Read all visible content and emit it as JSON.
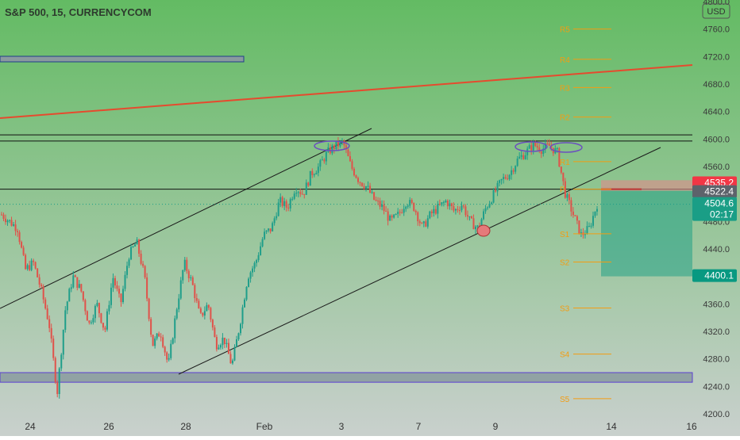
{
  "header": {
    "symbol_title": "S&P 500, 15, CURRENCYCOM",
    "currency_button": "USD"
  },
  "colors": {
    "bg_top": "#63bb63",
    "bg_bottom": "#c9d0cd",
    "candle_up": "#1f9e8a",
    "candle_down": "#e0524a",
    "trend_red": "#e64a2e",
    "pivot": "#f39c12",
    "zone_purple": "#5b3fd1",
    "zone_fill": "#8a9a9f",
    "ellipse": "#6b4fbf",
    "price_red": "#f23645",
    "price_green": "#1a9e86",
    "price_gray": "#5d636b",
    "target_green": "#089981"
  },
  "chart_data": {
    "type": "candlestick",
    "ylim": [
      4200,
      4800
    ],
    "y_ticks": [
      4200,
      4240,
      4280,
      4320,
      4360,
      4400,
      4440,
      4480,
      4520,
      4560,
      4600,
      4640,
      4680,
      4720,
      4760,
      4800
    ],
    "x_labels": [
      "24",
      "26",
      "28",
      "Feb",
      "3",
      "7",
      "9",
      "14",
      "16"
    ],
    "price_path": [
      [
        4490,
        4480
      ],
      [
        4470,
        4410
      ],
      [
        4420,
        4380
      ],
      [
        4330,
        4230
      ],
      [
        4350,
        4400
      ],
      [
        4380,
        4330
      ],
      [
        4360,
        4320
      ],
      [
        4400,
        4360
      ],
      [
        4430,
        4450
      ],
      [
        4400,
        4300
      ],
      [
        4320,
        4270
      ],
      [
        4350,
        4420
      ],
      [
        4390,
        4340
      ],
      [
        4360,
        4300
      ],
      [
        4310,
        4270
      ],
      [
        4330,
        4400
      ],
      [
        4420,
        4460
      ],
      [
        4470,
        4510
      ],
      [
        4500,
        4530
      ],
      [
        4520,
        4550
      ],
      [
        4560,
        4580
      ],
      [
        4590,
        4595
      ],
      [
        4560,
        4540
      ],
      [
        4530,
        4510
      ],
      [
        4500,
        4480
      ],
      [
        4490,
        4510
      ],
      [
        4500,
        4470
      ],
      [
        4490,
        4500
      ],
      [
        4510,
        4495
      ],
      [
        4505,
        4480
      ],
      [
        4470,
        4500
      ],
      [
        4520,
        4540
      ],
      [
        4550,
        4570
      ],
      [
        4580,
        4592
      ],
      [
        4585,
        4590
      ],
      [
        4580,
        4520
      ],
      [
        4490,
        4460
      ],
      [
        4470,
        4505
      ]
    ],
    "horizontal_levels": [
      4606,
      4597,
      4527
    ],
    "target_line": 4400.1,
    "zone_band": [
      4246,
      4260
    ],
    "pivots": [
      {
        "label": "R5",
        "value": 4760
      },
      {
        "label": "R4",
        "value": 4716
      },
      {
        "label": "R3",
        "value": 4675
      },
      {
        "label": "R2",
        "value": 4632
      },
      {
        "label": "R1",
        "value": 4567
      },
      {
        "label": "P",
        "value": 4527
      },
      {
        "label": "S1",
        "value": 4462
      },
      {
        "label": "S2",
        "value": 4421
      },
      {
        "label": "S3",
        "value": 4354
      },
      {
        "label": "S4",
        "value": 4287
      },
      {
        "label": "S5",
        "value": 4222
      }
    ],
    "price_labels": {
      "red": "4535.2",
      "gray": "4522.4",
      "green": "4504.6",
      "countdown": "02:17",
      "target": "4400.1"
    }
  }
}
